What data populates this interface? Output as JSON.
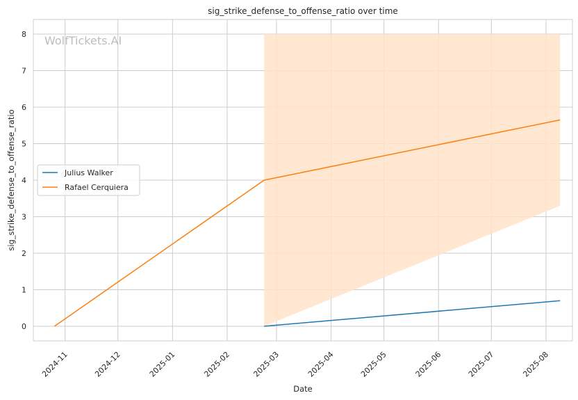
{
  "chart_data": {
    "type": "line",
    "title": "sig_strike_defense_to_offense_ratio over time",
    "xlabel": "Date",
    "ylabel": "sig_strike_defense_to_offense_ratio",
    "watermark": "WolfTickets.AI",
    "grid": true,
    "legend_position": "center-left",
    "x_ticks": [
      "2024-11",
      "2024-12",
      "2025-01",
      "2025-02",
      "2025-03",
      "2025-04",
      "2025-05",
      "2025-06",
      "2025-07",
      "2025-08"
    ],
    "y_ticks": [
      0,
      1,
      2,
      3,
      4,
      5,
      6,
      7,
      8
    ],
    "xlim": [
      "2024-10-14",
      "2025-08-16"
    ],
    "ylim": [
      -0.4,
      8.4
    ],
    "series": [
      {
        "name": "Julius Walker",
        "color": "#1f77b4",
        "points": [
          {
            "x": "2025-02-22",
            "y": 0.0
          },
          {
            "x": "2025-08-09",
            "y": 0.7
          }
        ]
      },
      {
        "name": "Rafael Cerquiera",
        "color": "#ff7f0e",
        "points": [
          {
            "x": "2024-10-26",
            "y": 0.0
          },
          {
            "x": "2025-02-22",
            "y": 4.0
          },
          {
            "x": "2025-08-09",
            "y": 5.65
          }
        ],
        "band": {
          "color": "#ffe3c9",
          "points": [
            {
              "x": "2025-02-22",
              "low": 0.0,
              "high": 8.0
            },
            {
              "x": "2025-08-09",
              "low": 3.3,
              "high": 8.0
            }
          ]
        }
      }
    ]
  }
}
